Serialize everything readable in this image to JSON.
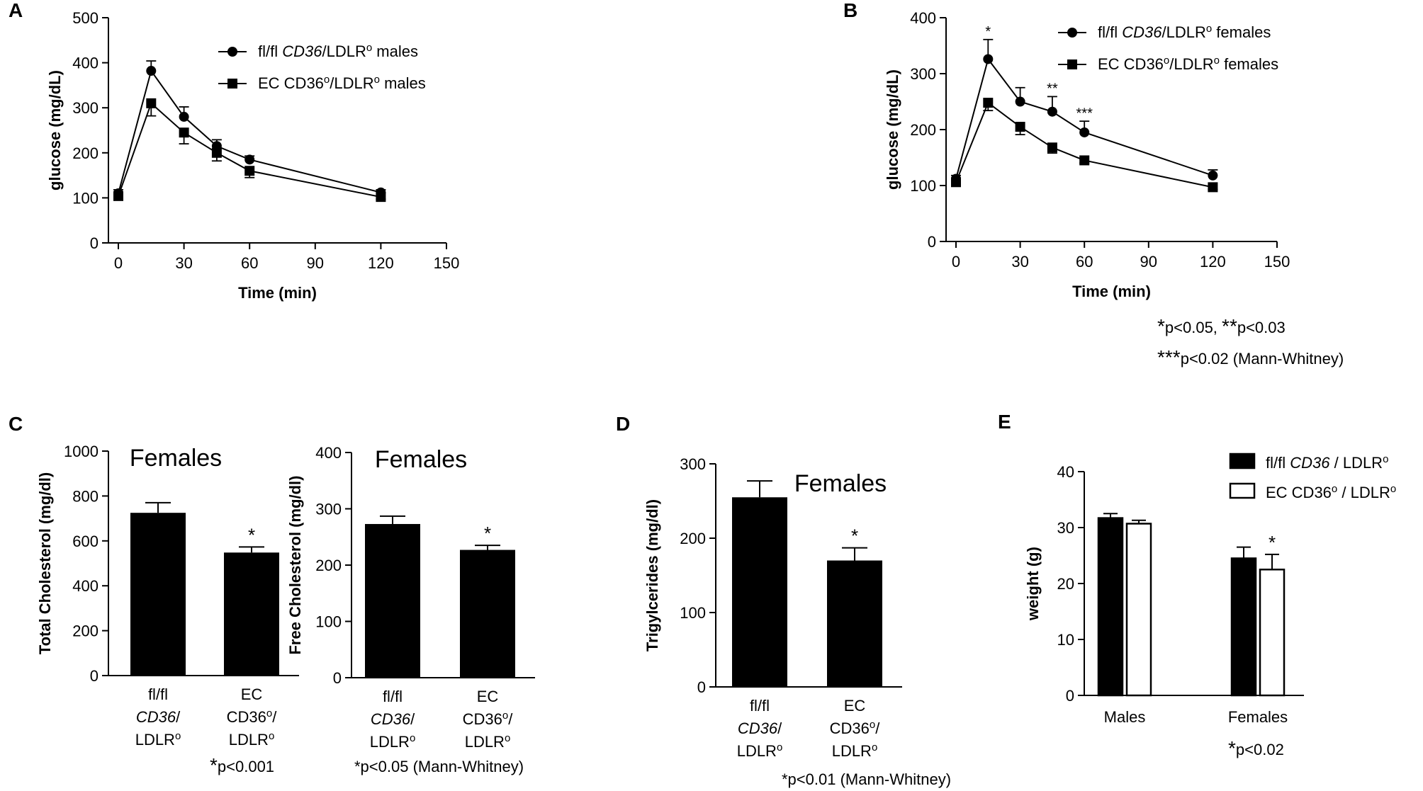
{
  "chart_data": [
    {
      "panel": "A",
      "type": "line",
      "xlabel": "Time (min)",
      "ylabel": "glucose (mg/dL)",
      "xlim": [
        0,
        150
      ],
      "ylim": [
        0,
        500
      ],
      "xticks": [
        0,
        30,
        60,
        90,
        120,
        150
      ],
      "yticks": [
        0,
        100,
        200,
        300,
        400,
        500
      ],
      "legend_position": "top-right",
      "x": [
        0,
        15,
        30,
        45,
        60,
        120
      ],
      "series": [
        {
          "name_parts": [
            "fl/fl ",
            "CD36",
            "/LDLR",
            "o",
            " males"
          ],
          "marker": "circle",
          "values": [
            110,
            382,
            280,
            215,
            185,
            112
          ],
          "err": [
            8,
            22,
            22,
            14,
            8,
            6
          ]
        },
        {
          "name_parts": [
            "EC CD36",
            "o",
            "/LDLR",
            "o",
            " males"
          ],
          "marker": "square",
          "values": [
            104,
            310,
            245,
            200,
            160,
            102
          ],
          "err": [
            6,
            28,
            25,
            18,
            15,
            5
          ]
        }
      ],
      "annotations": [],
      "notes": []
    },
    {
      "panel": "B",
      "type": "line",
      "xlabel": "Time (min)",
      "ylabel": "glucose (mg/dL)",
      "xlim": [
        0,
        150
      ],
      "ylim": [
        0,
        400
      ],
      "xticks": [
        0,
        30,
        60,
        90,
        120,
        150
      ],
      "yticks": [
        0,
        100,
        200,
        300,
        400
      ],
      "legend_position": "top-right",
      "x": [
        0,
        15,
        30,
        45,
        60,
        120
      ],
      "series": [
        {
          "name_parts": [
            "fl/fl ",
            "CD36",
            "/LDLR",
            "o",
            " females"
          ],
          "marker": "circle",
          "values": [
            112,
            326,
            250,
            232,
            195,
            118
          ],
          "err": [
            6,
            35,
            25,
            27,
            20,
            10
          ]
        },
        {
          "name_parts": [
            "EC CD36",
            "o",
            "/LDLR",
            "o",
            " females"
          ],
          "marker": "square",
          "values": [
            106,
            248,
            205,
            168,
            145,
            97
          ],
          "err": [
            5,
            14,
            14,
            10,
            5,
            4
          ]
        }
      ],
      "annotations": [
        {
          "x": 15,
          "y": 362,
          "text": "*"
        },
        {
          "x": 45,
          "y": 260,
          "text": "**"
        },
        {
          "x": 60,
          "y": 216,
          "text": "***"
        }
      ],
      "notes": [
        {
          "parts": [
            "*",
            "p<0.05, ",
            "**",
            "p<0.03"
          ]
        },
        {
          "parts": [
            "***",
            "p<0.02 (Mann-Whitney)"
          ]
        }
      ]
    },
    {
      "panel": "C",
      "type": "bar",
      "title": "Females",
      "ylabel": "Total Cholesterol (mg/dl)",
      "ylim": [
        0,
        1000
      ],
      "yticks": [
        0,
        200,
        400,
        600,
        800,
        1000
      ],
      "values": [
        725,
        548
      ],
      "err": [
        45,
        25
      ],
      "significance": [
        "",
        "*"
      ],
      "categories": [
        [
          [
            "fl/fl"
          ],
          [
            {
              "t": "CD36",
              "i": true
            },
            {
              "t": "/"
            }
          ],
          [
            {
              "t": "LDLR"
            },
            {
              "t": "o",
              "sup": true
            }
          ]
        ],
        [
          [
            "EC"
          ],
          [
            {
              "t": "CD36"
            },
            {
              "t": "o",
              "sup": true
            },
            {
              "t": "/"
            }
          ],
          [
            {
              "t": "LDLR"
            },
            {
              "t": "o",
              "sup": true
            }
          ]
        ]
      ],
      "notes": [
        {
          "parts": [
            "*",
            "p<0.001"
          ]
        }
      ]
    },
    {
      "panel": "C2",
      "type": "bar",
      "title": "Females",
      "ylabel": "Free Cholesterol (mg/dl)",
      "ylim": [
        0,
        400
      ],
      "yticks": [
        0,
        100,
        200,
        300,
        400
      ],
      "values": [
        273,
        227
      ],
      "err": [
        14,
        8
      ],
      "significance": [
        "",
        "*"
      ],
      "categories": [
        [
          [
            "fl/fl"
          ],
          [
            {
              "t": "CD36",
              "i": true
            },
            {
              "t": "/"
            }
          ],
          [
            {
              "t": "LDLR"
            },
            {
              "t": "o",
              "sup": true
            }
          ]
        ],
        [
          [
            "EC"
          ],
          [
            {
              "t": "CD36"
            },
            {
              "t": "o",
              "sup": true
            },
            {
              "t": "/"
            }
          ],
          [
            {
              "t": "LDLR"
            },
            {
              "t": "o",
              "sup": true
            }
          ]
        ]
      ],
      "notes": [
        {
          "parts": [
            "*p<0.05 (Mann-Whitney)"
          ]
        }
      ]
    },
    {
      "panel": "D",
      "type": "bar",
      "title": "Females",
      "ylabel": "Trigylcerides (mg/dl)",
      "ylim": [
        0,
        300
      ],
      "yticks": [
        0,
        100,
        200,
        300
      ],
      "values": [
        255,
        170
      ],
      "err": [
        22,
        17
      ],
      "significance": [
        "",
        "*"
      ],
      "categories": [
        [
          [
            "fl/fl"
          ],
          [
            {
              "t": "CD36",
              "i": true
            },
            {
              "t": "/"
            }
          ],
          [
            {
              "t": "LDLR"
            },
            {
              "t": "o",
              "sup": true
            }
          ]
        ],
        [
          [
            "EC"
          ],
          [
            {
              "t": "CD36"
            },
            {
              "t": "o",
              "sup": true
            },
            {
              "t": "/"
            }
          ],
          [
            {
              "t": "LDLR"
            },
            {
              "t": "o",
              "sup": true
            }
          ]
        ]
      ],
      "notes": [
        {
          "parts": [
            "*p<0.01 (Mann-Whitney)"
          ]
        }
      ]
    },
    {
      "panel": "E",
      "type": "bar",
      "ylabel": "weight (g)",
      "ylim": [
        0,
        40
      ],
      "yticks": [
        0,
        10,
        20,
        30,
        40
      ],
      "categories": [
        "Males",
        "Females"
      ],
      "legend_position": "top-right",
      "series": [
        {
          "name_parts": [
            "fl/fl ",
            "CD36",
            " / LDLR",
            "o"
          ],
          "fill": "#000000",
          "values": [
            31.7,
            24.5
          ],
          "err": [
            0.8,
            2.0
          ]
        },
        {
          "name_parts": [
            "EC CD36",
            "o",
            " / LDLR",
            "o"
          ],
          "fill": "#ffffff",
          "values": [
            30.7,
            22.5
          ],
          "err": [
            0.6,
            2.7
          ]
        }
      ],
      "significance": [
        {
          "category": 1,
          "series": 1,
          "text": "*"
        }
      ],
      "notes": [
        {
          "parts": [
            "*",
            "p<0.02"
          ]
        }
      ]
    }
  ]
}
